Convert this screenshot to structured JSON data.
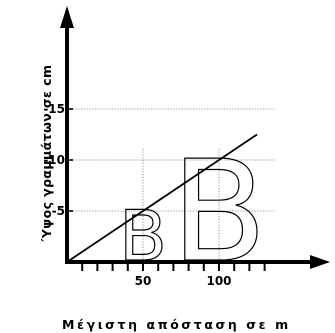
{
  "chart_data": {
    "type": "line",
    "xlabel": "Μέγιστη απόσταση σε m",
    "ylabel": "Ύψος γραμμάτων σε cm",
    "x_ticks": [
      50,
      100
    ],
    "y_ticks": [
      5,
      10,
      15
    ],
    "xlim": [
      0,
      125
    ],
    "ylim": [
      0,
      17
    ],
    "series": [
      {
        "x": [
          0,
          125
        ],
        "y": [
          0,
          12.5
        ]
      }
    ],
    "annotations": [
      {
        "text": "B",
        "x": 50,
        "height": 5
      },
      {
        "text": "B",
        "x": 100,
        "height": 10
      }
    ]
  }
}
